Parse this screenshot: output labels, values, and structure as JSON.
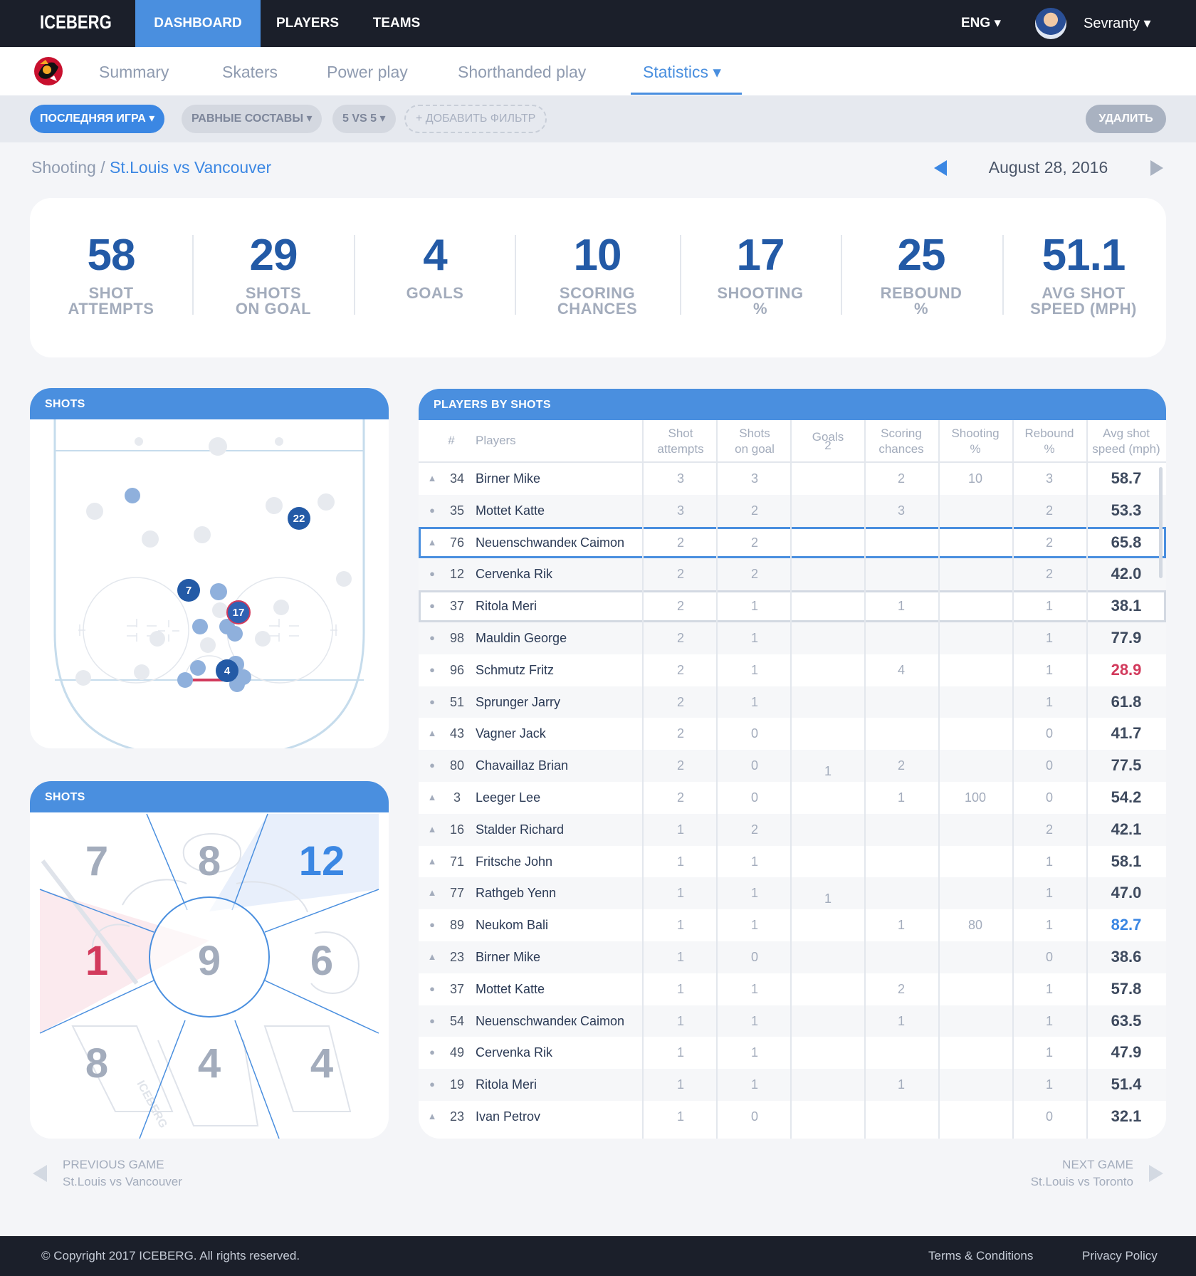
{
  "app": {
    "logo": "ICEBERG",
    "nav": [
      {
        "label": "DASHBOARD",
        "active": true
      },
      {
        "label": "PLAYERS",
        "active": false
      },
      {
        "label": "TEAMS",
        "active": false
      }
    ],
    "language": "ENG ▾",
    "user_name": "Sevranty ▾"
  },
  "tabs": [
    {
      "label": "Summary",
      "active": false
    },
    {
      "label": "Skaters",
      "active": false
    },
    {
      "label": "Power play",
      "active": false
    },
    {
      "label": "Shorthanded play",
      "active": false
    },
    {
      "label": "Statistics ▾",
      "active": true
    }
  ],
  "filters": {
    "chips": [
      "ПОСЛЕДНЯЯ ИГРА ▾",
      "РАВНЫЕ СОСТАВЫ ▾",
      "5 VS 5 ▾"
    ],
    "add_label": "+ ДОБАВИТЬ ФИЛЬТР",
    "delete_label": "УДАЛИТЬ"
  },
  "breadcrumb": {
    "root": "Shooting /",
    "current": "St.Louis vs Vancouver"
  },
  "date": "August 28, 2016",
  "stats": [
    {
      "value": "58",
      "label": "SHOT\nATTEMPTS"
    },
    {
      "value": "29",
      "label": "SHOTS\nON GOAL"
    },
    {
      "value": "4",
      "label": "GOALS"
    },
    {
      "value": "10",
      "label": "SCORING\nCHANCES"
    },
    {
      "value": "17",
      "label": "SHOOTING\n%"
    },
    {
      "value": "25",
      "label": "REBOUND\n%"
    },
    {
      "value": "51.1",
      "label": "AVG SHOT\nSPEED (MPH)"
    }
  ],
  "rink_card": {
    "title": "SHOTS",
    "labeled_shots": [
      "22",
      "7",
      "17",
      "4"
    ]
  },
  "goal_card": {
    "title": "SHOTS",
    "zones": {
      "top_left": "7",
      "top_center": "8",
      "top_right": "12",
      "mid_left": "1",
      "center": "9",
      "mid_right": "6",
      "bottom_left": "8",
      "bottom_center": "4",
      "bottom_right": "4"
    },
    "watermark": "ICEBERG",
    "colors": {
      "hot": "#d23a5c",
      "cold": "#3b87e3"
    }
  },
  "players_card": {
    "title": "PLAYERS BY SHOTS",
    "columns": [
      "#",
      "Players",
      "Shot\nattempts",
      "Shots\non goal",
      "Goals\n2",
      "Scoring\nchances",
      "Shooting\n%",
      "Rebound\n%",
      "Avg shot\nspeed (mph)"
    ],
    "rows": [
      {
        "mark": "▲",
        "num": "34",
        "name": "Birner Mike",
        "sa": "3",
        "sog": "3",
        "g": "",
        "sc": "2",
        "sh": "10",
        "rb": "3",
        "spd": "58.7"
      },
      {
        "mark": "●",
        "num": "35",
        "name": "Mottet Katte",
        "sa": "3",
        "sog": "2",
        "g": "",
        "sc": "3",
        "sh": "",
        "rb": "2",
        "spd": "53.3"
      },
      {
        "mark": "▲",
        "num": "76",
        "name": "Neuenschwandeк Caimon",
        "sa": "2",
        "sog": "2",
        "g": "",
        "sc": "",
        "sh": "",
        "rb": "2",
        "spd": "65.8"
      },
      {
        "mark": "●",
        "num": "12",
        "name": "Cervenka Rik",
        "sa": "2",
        "sog": "2",
        "g": "",
        "sc": "",
        "sh": "",
        "rb": "2",
        "spd": "42.0"
      },
      {
        "mark": "●",
        "num": "37",
        "name": "Ritola Meri",
        "sa": "2",
        "sog": "1",
        "g": "",
        "sc": "1",
        "sh": "",
        "rb": "1",
        "spd": "38.1"
      },
      {
        "mark": "●",
        "num": "98",
        "name": "Mauldin George",
        "sa": "2",
        "sog": "1",
        "g": "",
        "sc": "",
        "sh": "",
        "rb": "1",
        "spd": "77.9"
      },
      {
        "mark": "●",
        "num": "96",
        "name": "Schmutz Fritz",
        "sa": "2",
        "sog": "1",
        "g": "",
        "sc": "4",
        "sh": "",
        "rb": "1",
        "spd": "28.9"
      },
      {
        "mark": "●",
        "num": "51",
        "name": "Sprunger Jarry",
        "sa": "2",
        "sog": "1",
        "g": "",
        "sc": "",
        "sh": "",
        "rb": "1",
        "spd": "61.8"
      },
      {
        "mark": "▲",
        "num": "43",
        "name": "Vagner Jack",
        "sa": "2",
        "sog": "0",
        "g": "",
        "sc": "",
        "sh": "",
        "rb": "0",
        "spd": "41.7"
      },
      {
        "mark": "●",
        "num": "80",
        "name": "Chavaillaz Brian",
        "sa": "2",
        "sog": "0",
        "g": "1",
        "sc": "2",
        "sh": "",
        "rb": "0",
        "spd": "77.5"
      },
      {
        "mark": "▲",
        "num": "3",
        "name": "Leeger Lee",
        "sa": "2",
        "sog": "0",
        "g": "",
        "sc": "1",
        "sh": "100",
        "rb": "0",
        "spd": "54.2"
      },
      {
        "mark": "▲",
        "num": "16",
        "name": "Stalder Richard",
        "sa": "1",
        "sog": "2",
        "g": "",
        "sc": "",
        "sh": "",
        "rb": "2",
        "spd": "42.1"
      },
      {
        "mark": "▲",
        "num": "71",
        "name": "Fritsche John",
        "sa": "1",
        "sog": "1",
        "g": "",
        "sc": "",
        "sh": "",
        "rb": "1",
        "spd": "58.1"
      },
      {
        "mark": "▲",
        "num": "77",
        "name": "Rathgeb Yenn",
        "sa": "1",
        "sog": "1",
        "g": "1",
        "sc": "",
        "sh": "",
        "rb": "1",
        "spd": "47.0"
      },
      {
        "mark": "●",
        "num": "89",
        "name": "Neukom Bali",
        "sa": "1",
        "sog": "1",
        "g": "",
        "sc": "1",
        "sh": "80",
        "rb": "1",
        "spd": "82.7"
      },
      {
        "mark": "▲",
        "num": "23",
        "name": "Birner Mike",
        "sa": "1",
        "sog": "0",
        "g": "",
        "sc": "",
        "sh": "",
        "rb": "0",
        "spd": "38.6"
      },
      {
        "mark": "●",
        "num": "37",
        "name": "Mottet Katte",
        "sa": "1",
        "sog": "1",
        "g": "",
        "sc": "2",
        "sh": "",
        "rb": "1",
        "spd": "57.8"
      },
      {
        "mark": "●",
        "num": "54",
        "name": "Neuenschwandeк Caimon",
        "sa": "1",
        "sog": "1",
        "g": "",
        "sc": "1",
        "sh": "",
        "rb": "1",
        "spd": "63.5"
      },
      {
        "mark": "●",
        "num": "49",
        "name": "Cervenka Rik",
        "sa": "1",
        "sog": "1",
        "g": "",
        "sc": "",
        "sh": "",
        "rb": "1",
        "spd": "47.9"
      },
      {
        "mark": "●",
        "num": "19",
        "name": "Ritola Meri",
        "sa": "1",
        "sog": "1",
        "g": "",
        "sc": "1",
        "sh": "",
        "rb": "1",
        "spd": "51.4"
      },
      {
        "mark": "▲",
        "num": "23",
        "name": "Ivan Petrov",
        "sa": "1",
        "sog": "0",
        "g": "",
        "sc": "",
        "sh": "",
        "rb": "0",
        "spd": "32.1"
      }
    ],
    "highlight_colors": {
      "low": "#d23a5c",
      "high": "#3b87e3"
    }
  },
  "game_nav": {
    "prev_label": "PREVIOUS GAME",
    "prev_game": "St.Louis vs Vancouver",
    "next_label": "NEXT GAME",
    "next_game": "St.Louis vs Toronto"
  },
  "footer": {
    "copyright": "© Copyright 2017 ICEBERG. All rights reserved.",
    "terms": "Terms & Conditions",
    "privacy": "Privacy Policy"
  }
}
